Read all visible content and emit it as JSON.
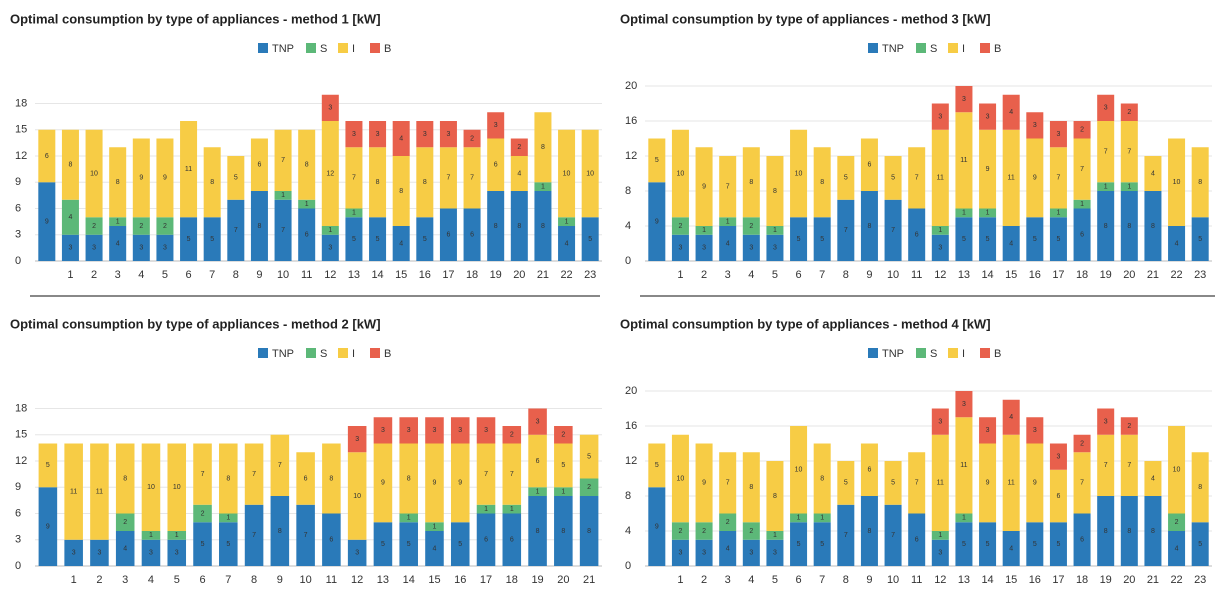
{
  "chart_data": [
    {
      "type": "bar",
      "stacked": true,
      "title": "Optimal consumption by type of appliances - method 1 [kW]",
      "categories": [
        null,
        "1",
        "2",
        "3",
        "4",
        "5",
        "6",
        "7",
        "8",
        "9",
        "10",
        "11",
        "12",
        "13",
        "14",
        "15",
        "16",
        "17",
        "18",
        "19",
        "20",
        "21",
        "22",
        "23"
      ],
      "series": [
        {
          "name": "TNP",
          "color": "#2a7ab9",
          "values": [
            9,
            3,
            3,
            4,
            3,
            3,
            5,
            5,
            7,
            8,
            7,
            6,
            3,
            5,
            5,
            4,
            5,
            6,
            6,
            8,
            8,
            8,
            4,
            5
          ]
        },
        {
          "name": "S",
          "color": "#5cb878",
          "values": [
            0,
            4,
            2,
            1,
            2,
            2,
            0,
            0,
            0,
            0,
            1,
            1,
            1,
            1,
            0,
            0,
            0,
            0,
            0,
            0,
            0,
            1,
            1,
            0
          ]
        },
        {
          "name": "I",
          "color": "#f7cc45",
          "values": [
            6,
            8,
            10,
            8,
            9,
            9,
            11,
            8,
            5,
            6,
            7,
            8,
            12,
            7,
            8,
            8,
            8,
            7,
            7,
            6,
            4,
            8,
            10,
            10
          ]
        },
        {
          "name": "B",
          "color": "#e8604c",
          "values": [
            0,
            0,
            0,
            0,
            0,
            0,
            0,
            0,
            0,
            0,
            0,
            0,
            3,
            3,
            3,
            4,
            3,
            3,
            2,
            3,
            2,
            0,
            0,
            0
          ]
        }
      ],
      "ylim": [
        0,
        20
      ],
      "yticks": [
        0,
        3,
        6,
        9,
        12,
        15,
        18
      ]
    },
    {
      "type": "bar",
      "stacked": true,
      "title": "Optimal consumption by type of appliances - method 2 [kW]",
      "categories": [
        null,
        "1",
        "2",
        "3",
        "4",
        "5",
        "6",
        "7",
        "8",
        "9",
        "10",
        "11",
        "12",
        "13",
        "14",
        "15",
        "16",
        "17",
        "18",
        "19",
        "20",
        "21"
      ],
      "series": [
        {
          "name": "TNP",
          "color": "#2a7ab9",
          "values": [
            9,
            3,
            3,
            4,
            3,
            3,
            5,
            5,
            7,
            8,
            7,
            6,
            3,
            5,
            5,
            4,
            5,
            6,
            6,
            8,
            8,
            8
          ]
        },
        {
          "name": "S",
          "color": "#5cb878",
          "values": [
            0,
            0,
            0,
            2,
            1,
            1,
            2,
            1,
            0,
            0,
            0,
            0,
            0,
            0,
            1,
            1,
            0,
            1,
            1,
            1,
            1,
            2
          ]
        },
        {
          "name": "I",
          "color": "#f7cc45",
          "values": [
            5,
            11,
            11,
            8,
            10,
            10,
            7,
            8,
            7,
            7,
            6,
            8,
            10,
            9,
            8,
            9,
            9,
            7,
            7,
            6,
            5,
            5
          ]
        },
        {
          "name": "B",
          "color": "#e8604c",
          "values": [
            0,
            0,
            0,
            0,
            0,
            0,
            0,
            0,
            0,
            0,
            0,
            0,
            3,
            3,
            3,
            3,
            3,
            3,
            2,
            3,
            2,
            0
          ]
        }
      ],
      "ylim": [
        0,
        20
      ],
      "yticks": [
        0,
        3,
        6,
        9,
        12,
        15,
        18
      ]
    },
    {
      "type": "bar",
      "stacked": true,
      "title": "Optimal consumption by type of appliances - method 3 [kW]",
      "categories": [
        null,
        "1",
        "2",
        "3",
        "4",
        "5",
        "6",
        "7",
        "8",
        "9",
        "10",
        "11",
        "12",
        "13",
        "14",
        "15",
        "16",
        "17",
        "18",
        "19",
        "20",
        "21",
        "22",
        "23"
      ],
      "series": [
        {
          "name": "TNP",
          "color": "#2a7ab9",
          "values": [
            9,
            3,
            3,
            4,
            3,
            3,
            5,
            5,
            7,
            8,
            7,
            6,
            3,
            5,
            5,
            4,
            5,
            5,
            6,
            8,
            8,
            8,
            4,
            5
          ]
        },
        {
          "name": "S",
          "color": "#5cb878",
          "values": [
            0,
            2,
            1,
            1,
            2,
            1,
            0,
            0,
            0,
            0,
            0,
            0,
            1,
            1,
            1,
            0,
            0,
            1,
            1,
            1,
            1,
            0,
            0,
            0
          ]
        },
        {
          "name": "I",
          "color": "#f7cc45",
          "values": [
            5,
            10,
            9,
            7,
            8,
            8,
            10,
            8,
            5,
            6,
            5,
            7,
            11,
            11,
            9,
            11,
            9,
            7,
            7,
            7,
            7,
            4,
            10,
            8
          ]
        },
        {
          "name": "B",
          "color": "#e8604c",
          "values": [
            0,
            0,
            0,
            0,
            0,
            0,
            0,
            0,
            0,
            0,
            0,
            0,
            3,
            3,
            3,
            4,
            3,
            3,
            2,
            3,
            2,
            0,
            0,
            0
          ]
        }
      ],
      "ylim": [
        0,
        20
      ],
      "yticks": [
        0,
        4,
        8,
        12,
        16,
        20
      ]
    },
    {
      "type": "bar",
      "stacked": true,
      "title": "Optimal consumption by type of appliances - method 4 [kW]",
      "categories": [
        null,
        "1",
        "2",
        "3",
        "4",
        "5",
        "6",
        "7",
        "8",
        "9",
        "10",
        "11",
        "12",
        "13",
        "14",
        "15",
        "16",
        "17",
        "18",
        "19",
        "20",
        "21",
        "22",
        "23"
      ],
      "series": [
        {
          "name": "TNP",
          "color": "#2a7ab9",
          "values": [
            9,
            3,
            3,
            4,
            3,
            3,
            5,
            5,
            7,
            8,
            7,
            6,
            3,
            5,
            5,
            4,
            5,
            5,
            6,
            8,
            8,
            8,
            4,
            5
          ]
        },
        {
          "name": "S",
          "color": "#5cb878",
          "values": [
            0,
            2,
            2,
            2,
            2,
            1,
            1,
            1,
            0,
            0,
            0,
            0,
            1,
            1,
            0,
            0,
            0,
            0,
            0,
            0,
            0,
            0,
            2,
            0
          ]
        },
        {
          "name": "I",
          "color": "#f7cc45",
          "values": [
            5,
            10,
            9,
            7,
            8,
            8,
            10,
            8,
            5,
            6,
            5,
            7,
            11,
            11,
            9,
            11,
            9,
            6,
            7,
            7,
            7,
            4,
            10,
            8
          ]
        },
        {
          "name": "B",
          "color": "#e8604c",
          "values": [
            0,
            0,
            0,
            0,
            0,
            0,
            0,
            0,
            0,
            0,
            0,
            0,
            3,
            3,
            3,
            4,
            3,
            3,
            2,
            3,
            2,
            0,
            0,
            0
          ]
        }
      ],
      "ylim": [
        0,
        20
      ],
      "yticks": [
        0,
        4,
        8,
        12,
        16,
        20
      ]
    }
  ]
}
